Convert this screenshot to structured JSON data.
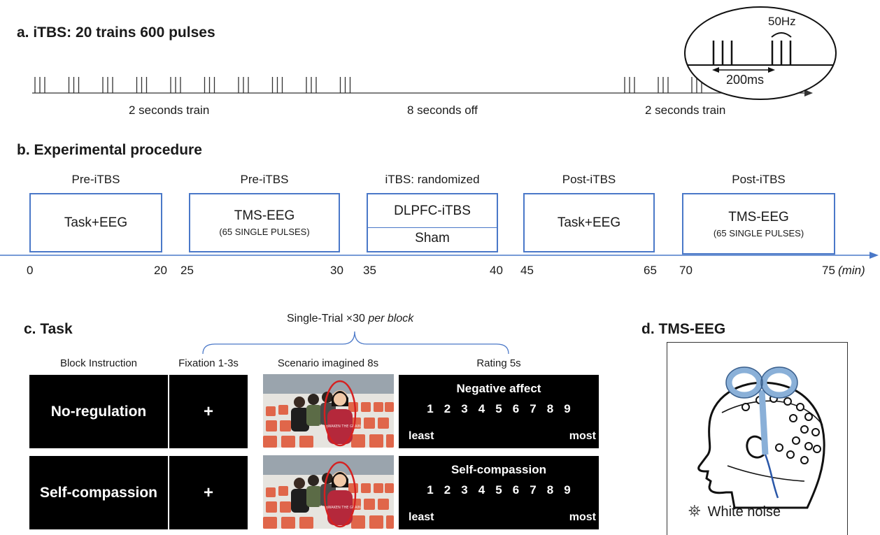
{
  "panel_a": {
    "heading": "a.  iTBS: 20 trains  600 pulses",
    "label_left": "2 seconds train",
    "label_mid": "8 seconds off",
    "label_right": "2 seconds train",
    "inset_freq": "50Hz",
    "inset_interval": "200ms"
  },
  "panel_b": {
    "heading": "b. Experimental procedure",
    "stages": [
      {
        "phase": "Pre-iTBS",
        "main": "Task+EEG",
        "sub": ""
      },
      {
        "phase": "Pre-iTBS",
        "main": "TMS-EEG",
        "sub": "(65 SINGLE PULSES)"
      },
      {
        "phase": "iTBS: randomized",
        "main": "DLPFC-iTBS",
        "sub": "Sham"
      },
      {
        "phase": "Post-iTBS",
        "main": "Task+EEG",
        "sub": ""
      },
      {
        "phase": "Post-iTBS",
        "main": "TMS-EEG",
        "sub": "(65 SINGLE PULSES)"
      }
    ],
    "ticks": [
      "0",
      "20",
      "25",
      "30",
      "35",
      "40",
      "45",
      "65",
      "70",
      "75"
    ],
    "unit": "(min)"
  },
  "panel_c": {
    "heading": "c. Task",
    "trial_label": "Single-Trial ×30",
    "trial_label_italic": "per block",
    "columns": [
      "Block Instruction",
      "Fixation 1-3s",
      "Scenario imagined 8s",
      "Rating 5s"
    ],
    "rows": [
      {
        "instruction": "No-regulation",
        "fixation": "+",
        "rating_title": "Negative affect"
      },
      {
        "instruction": "Self-compassion",
        "fixation": "+",
        "rating_title": "Self-compassion"
      }
    ],
    "scale": [
      "1",
      "2",
      "3",
      "4",
      "5",
      "6",
      "7",
      "8",
      "9"
    ],
    "scale_low": "least",
    "scale_high": "most",
    "shirt_text": "NOT WAKEN THE GRAIN"
  },
  "panel_d": {
    "heading": "d. TMS-EEG",
    "caption": "White noise"
  },
  "colors": {
    "box_border": "#4a78c8",
    "timeline": "#4a78c8",
    "highlight_ellipse": "#d62020",
    "coil": "#8ab0d8",
    "seat": "#e0664a",
    "sweater": "#b5283b"
  }
}
